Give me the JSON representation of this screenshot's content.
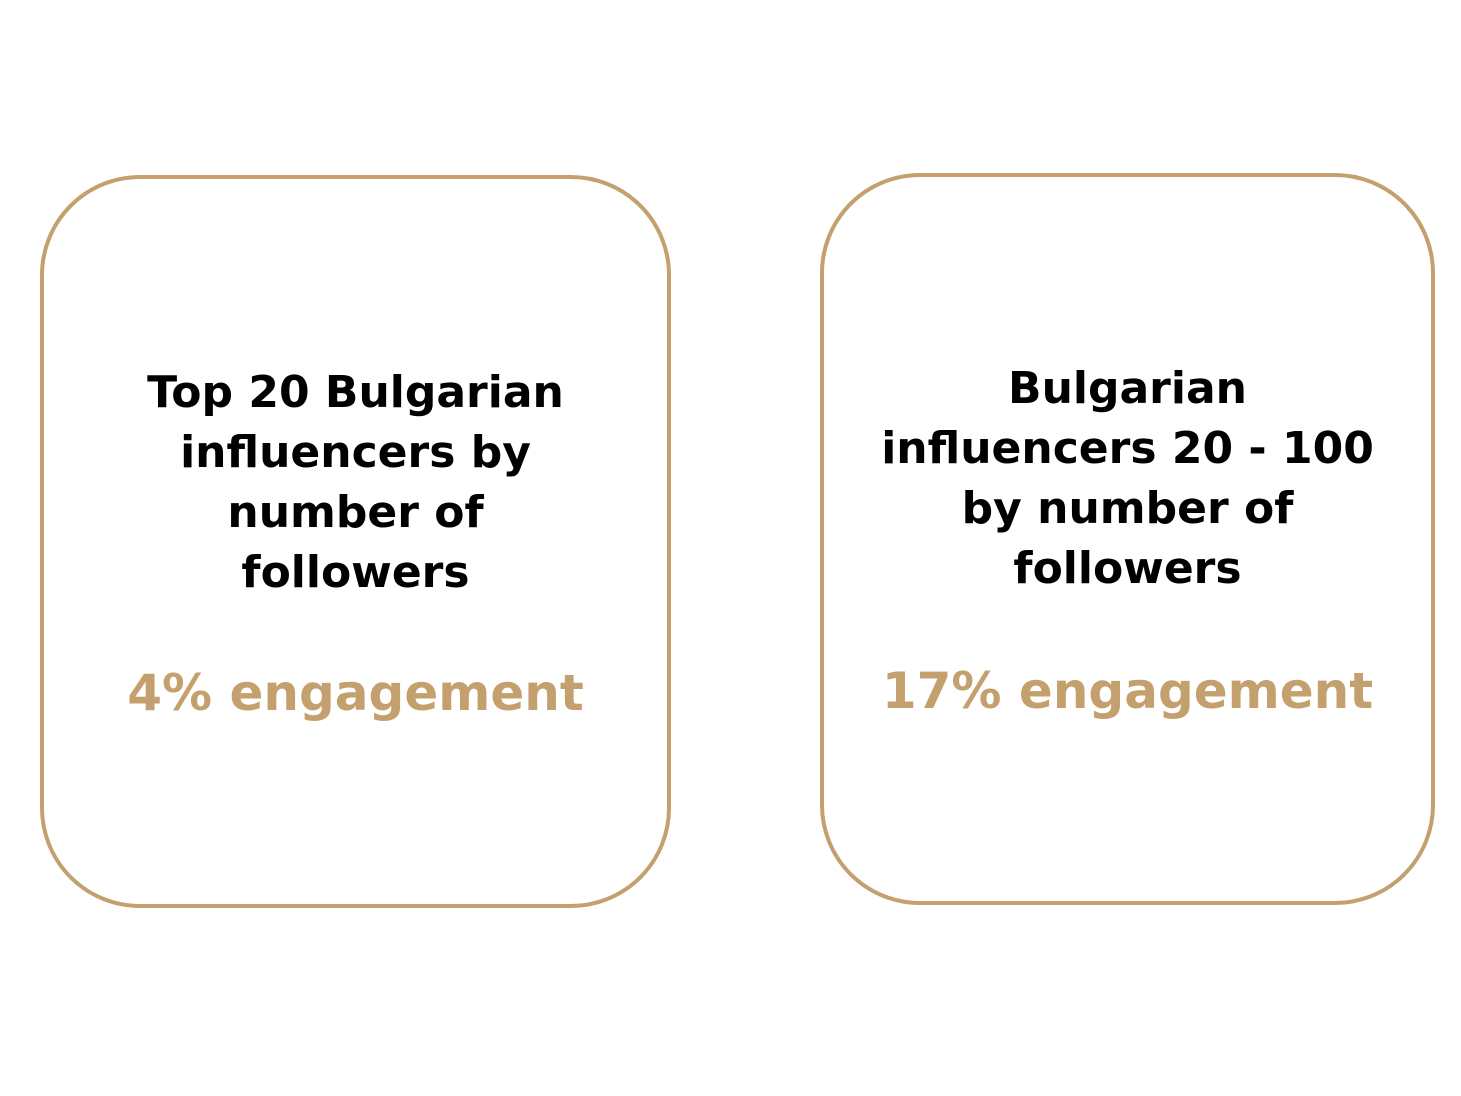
{
  "colors": {
    "accent": "#c4a06e",
    "text": "#000000",
    "background": "#ffffff"
  },
  "cards": [
    {
      "title": "Top 20 Bulgarian influencers by number of followers",
      "stat": "4% engagement"
    },
    {
      "title": "Bulgarian influencers 20 - 100 by number of followers",
      "stat": "17% engagement"
    }
  ]
}
